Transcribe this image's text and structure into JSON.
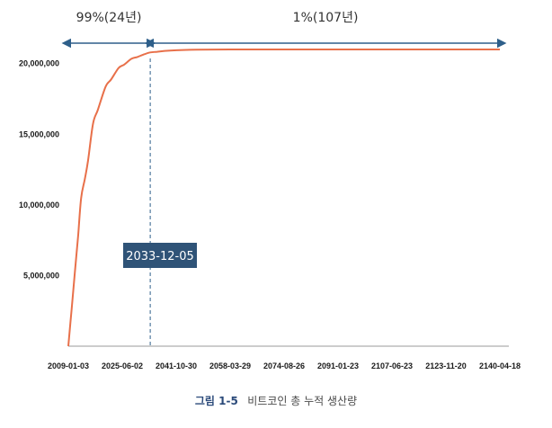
{
  "chart_data": {
    "type": "line",
    "x_dates": [
      "2009-01-03",
      "2025-06-02",
      "2041-10-30",
      "2058-03-29",
      "2074-08-26",
      "2091-01-23",
      "2107-06-23",
      "2123-11-20",
      "2140-04-18"
    ],
    "y_ticks": [
      "5,000,000",
      "10,000,000",
      "15,000,000",
      "20,000,000"
    ],
    "ylim": [
      0,
      21000000
    ],
    "series": [
      {
        "color": "#e8704a",
        "points": [
          {
            "x": "2009-01-03",
            "y": 0
          },
          {
            "x": "2010-01-03",
            "y": 2625000
          },
          {
            "x": "2011-01-03",
            "y": 5250000
          },
          {
            "x": "2012-01-03",
            "y": 7875000
          },
          {
            "x": "2012-11-28",
            "y": 10500000
          },
          {
            "x": "2014-01-03",
            "y": 11812500
          },
          {
            "x": "2015-01-03",
            "y": 13125000
          },
          {
            "x": "2016-07-09",
            "y": 15750000
          },
          {
            "x": "2018-01-03",
            "y": 16734375
          },
          {
            "x": "2020-05-11",
            "y": 18375000
          },
          {
            "x": "2022-01-03",
            "y": 18867188
          },
          {
            "x": "2024-04-20",
            "y": 19687500
          },
          {
            "x": "2026-01-03",
            "y": 19933594
          },
          {
            "x": "2028-04-01",
            "y": 20343750
          },
          {
            "x": "2030-01-03",
            "y": 20466797
          },
          {
            "x": "2032-03-30",
            "y": 20671875
          },
          {
            "x": "2033-12-05",
            "y": 20790000
          },
          {
            "x": "2036-01-03",
            "y": 20835938
          },
          {
            "x": "2040-01-03",
            "y": 20917969
          },
          {
            "x": "2048-01-03",
            "y": 20979492
          },
          {
            "x": "2060-01-03",
            "y": 20997000
          },
          {
            "x": "2080-01-03",
            "y": 20999800
          },
          {
            "x": "2100-01-03",
            "y": 20999990
          },
          {
            "x": "2140-04-18",
            "y": 21000000
          }
        ]
      }
    ],
    "marker": {
      "date": "2033-12-05",
      "label": "2033-12-05"
    },
    "spans": [
      {
        "label": "99%(24년)",
        "from": "2009-01-03",
        "to": "2033-12-05"
      },
      {
        "label": "1%(107년)",
        "to": "2140-04-18"
      }
    ],
    "grid": false
  },
  "caption": {
    "figure": "그림 1-5",
    "text": "비트코인 총 누적 생산량"
  },
  "colors": {
    "line": "#e8704a",
    "span_arrow": "#2e5f8a",
    "marker_line": "#2e5f8a",
    "callout_bg": "#2f5377",
    "axis": "#999999"
  }
}
